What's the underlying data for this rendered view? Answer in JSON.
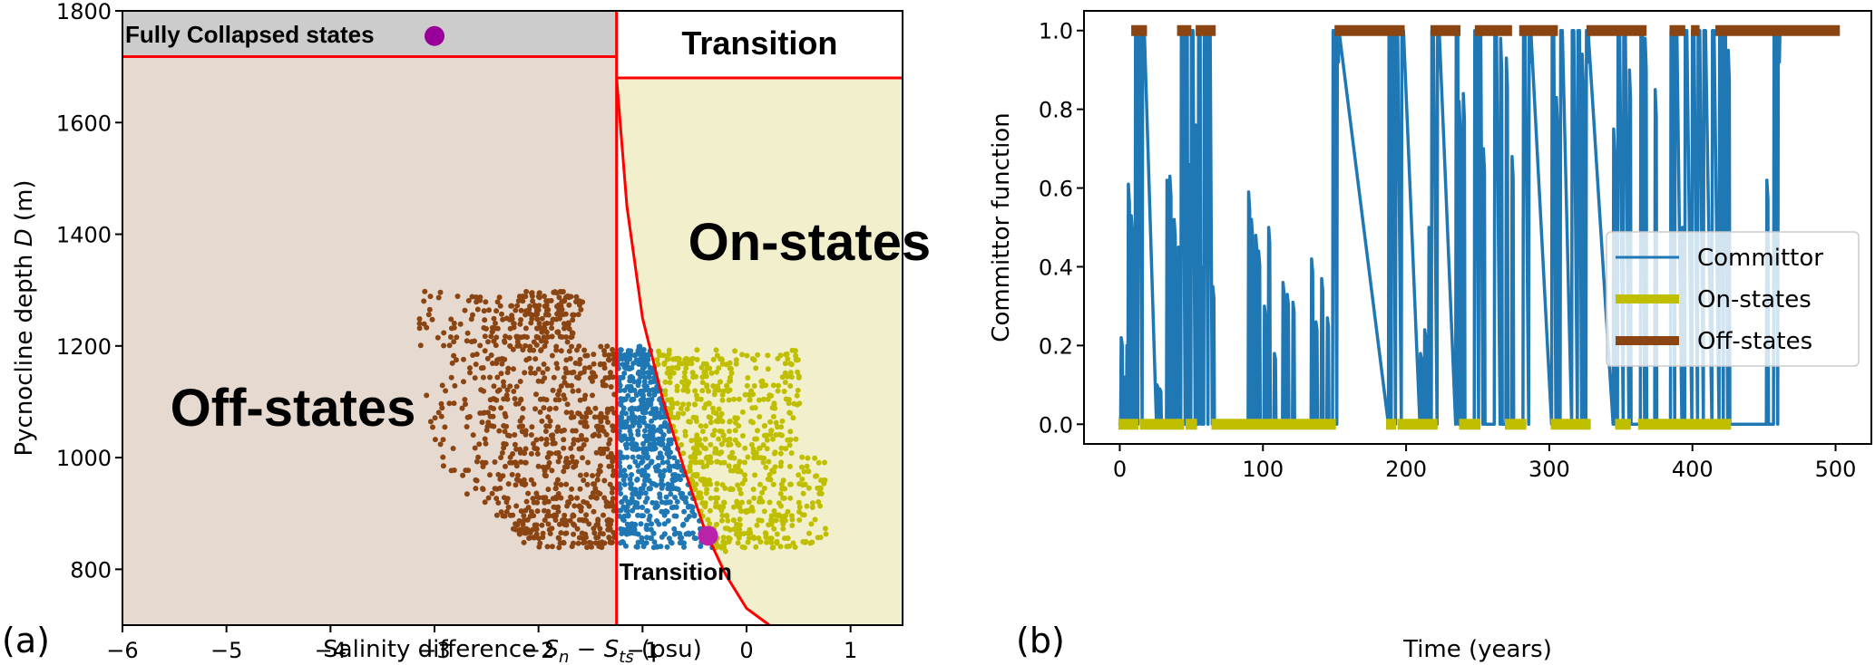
{
  "chart_data": [
    {
      "panel": "(a)",
      "type": "scatter",
      "title": "",
      "xlabel_parts": [
        "Salinity difference ",
        "S",
        "n",
        " − ",
        "S",
        "ts",
        " (psu)"
      ],
      "ylabel_parts": [
        "Pycnocline depth ",
        "D",
        " (m)"
      ],
      "xlim": [
        -6,
        1.5
      ],
      "ylim": [
        700,
        1800
      ],
      "xticks": [
        -6,
        -5,
        -4,
        -3,
        -2,
        -1,
        0,
        1
      ],
      "xtick_labels": [
        "−6",
        "−5",
        "−4",
        "−3",
        "−2",
        "−1",
        "0",
        "1"
      ],
      "yticks": [
        800,
        1000,
        1200,
        1400,
        1600,
        1800
      ],
      "ytick_labels": [
        "800",
        "1000",
        "1200",
        "1400",
        "1600",
        "1800"
      ],
      "grid": false,
      "regions": {
        "off_states": {
          "label": "Off-states",
          "color": "#e6dad0",
          "x_max": -1.25,
          "y_max": 1718
        },
        "fully_collapsed": {
          "label": "Fully Collapsed states",
          "color": "#cccccc",
          "y_min": 1718,
          "x_max": -1.25
        },
        "transition_top": {
          "label": "Transition",
          "color": "#ffffff",
          "y_min": 1680,
          "x_min": -1.25
        },
        "on_states": {
          "label": "On-states",
          "color": "#f2f0cc"
        },
        "transition_bottom": {
          "label": "Transition",
          "color": "#ffffff"
        }
      },
      "boundary_color": "#ff0000",
      "boundary_vertical_x": -1.25,
      "boundary_curve": [
        [
          -1.25,
          1680
        ],
        [
          -1.15,
          1450
        ],
        [
          -1.0,
          1250
        ],
        [
          -0.8,
          1100
        ],
        [
          -0.6,
          980
        ],
        [
          -0.4,
          870
        ],
        [
          -0.2,
          790
        ],
        [
          0.0,
          730
        ],
        [
          0.22,
          700
        ]
      ],
      "series": [
        {
          "name": "Off-states",
          "color": "#8b4513",
          "x_range": [
            -3.3,
            -1.25
          ],
          "y_range": [
            840,
            1300
          ]
        },
        {
          "name": "Transition",
          "color": "#1f77b4",
          "x_range": [
            -1.25,
            -0.3
          ],
          "y_range": [
            835,
            1200
          ]
        },
        {
          "name": "On-states",
          "color": "#bfbf00",
          "x_range": [
            -1.0,
            0.75
          ],
          "y_range": [
            835,
            1195
          ]
        }
      ],
      "markers": [
        {
          "name": "fully-collapsed-marker",
          "x": -3.0,
          "y": 1755,
          "color": "#990099"
        },
        {
          "name": "on-state-marker",
          "x": -0.37,
          "y": 860,
          "color": "#bb22aa"
        }
      ]
    },
    {
      "panel": "(b)",
      "type": "line",
      "title": "",
      "xlabel": "Time (years)",
      "ylabel": "Committor function",
      "xlim": [
        -25,
        525
      ],
      "ylim": [
        -0.05,
        1.05
      ],
      "xticks": [
        0,
        100,
        200,
        300,
        400,
        500
      ],
      "xtick_labels": [
        "0",
        "100",
        "200",
        "300",
        "400",
        "500"
      ],
      "yticks": [
        0.0,
        0.2,
        0.4,
        0.6,
        0.8,
        1.0
      ],
      "ytick_labels": [
        "0.0",
        "0.2",
        "0.4",
        "0.6",
        "0.8",
        "1.0"
      ],
      "grid": false,
      "legend": {
        "placement": "center-right",
        "entries": [
          {
            "label": "Committor",
            "color": "#1f77b4"
          },
          {
            "label": "On-states",
            "color": "#bfbf00"
          },
          {
            "label": "Off-states",
            "color": "#8b4513"
          }
        ]
      },
      "off_state_intervals": [
        [
          8,
          19
        ],
        [
          40,
          50
        ],
        [
          53,
          67
        ],
        [
          150,
          199
        ],
        [
          217,
          238
        ],
        [
          248,
          274
        ],
        [
          279,
          306
        ],
        [
          326,
          368
        ],
        [
          384,
          395
        ],
        [
          399,
          405
        ],
        [
          416,
          503
        ]
      ],
      "on_state_intervals": [
        [
          -1,
          13
        ],
        [
          14,
          45
        ],
        [
          46,
          54
        ],
        [
          64,
          151
        ],
        [
          186,
          193
        ],
        [
          194,
          222
        ],
        [
          237,
          252
        ],
        [
          269,
          284
        ],
        [
          301,
          329
        ],
        [
          346,
          357
        ],
        [
          362,
          427
        ]
      ],
      "committor_excursions": [
        {
          "t": 1,
          "peak": 0.22
        },
        {
          "t": 3,
          "peak": 0.12
        },
        {
          "t": 5,
          "peak": 0.2
        },
        {
          "t": 6,
          "peak": 0.61
        },
        {
          "t": 8,
          "peak": 0.53
        },
        {
          "t": 10,
          "peak": 0.3
        },
        {
          "t": 11,
          "peak": 1.0
        },
        {
          "t": 13,
          "peak": 1.0
        },
        {
          "t": 16,
          "peak": 1.0
        },
        {
          "t": 26,
          "peak": 0.1
        },
        {
          "t": 28,
          "peak": 0.09
        },
        {
          "t": 33,
          "peak": 0.62
        },
        {
          "t": 35,
          "peak": 0.63
        },
        {
          "t": 38,
          "peak": 0.52
        },
        {
          "t": 41,
          "peak": 0.45
        },
        {
          "t": 43,
          "peak": 1.0
        },
        {
          "t": 46,
          "peak": 1.0
        },
        {
          "t": 48,
          "peak": 0.66
        },
        {
          "t": 50,
          "peak": 1.0
        },
        {
          "t": 53,
          "peak": 0.76
        },
        {
          "t": 55,
          "peak": 1.0
        },
        {
          "t": 57,
          "peak": 0.4
        },
        {
          "t": 59,
          "peak": 1.0
        },
        {
          "t": 62,
          "peak": 1.0
        },
        {
          "t": 65,
          "peak": 0.35
        },
        {
          "t": 90,
          "peak": 0.59
        },
        {
          "t": 92,
          "peak": 0.52
        },
        {
          "t": 95,
          "peak": 0.48
        },
        {
          "t": 97,
          "peak": 0.44
        },
        {
          "t": 101,
          "peak": 0.3
        },
        {
          "t": 104,
          "peak": 0.5
        },
        {
          "t": 108,
          "peak": 0.18
        },
        {
          "t": 114,
          "peak": 0.36
        },
        {
          "t": 117,
          "peak": 0.33
        },
        {
          "t": 121,
          "peak": 0.31
        },
        {
          "t": 134,
          "peak": 0.42
        },
        {
          "t": 137,
          "peak": 0.26
        },
        {
          "t": 141,
          "peak": 0.37
        },
        {
          "t": 145,
          "peak": 0.27
        },
        {
          "t": 149,
          "peak": 1.0
        },
        {
          "t": 152,
          "peak": 1.0
        },
        {
          "t": 188,
          "peak": 1.0
        },
        {
          "t": 190,
          "peak": 1.0
        },
        {
          "t": 193,
          "peak": 1.0
        },
        {
          "t": 197,
          "peak": 1.0
        },
        {
          "t": 210,
          "peak": 0.18
        },
        {
          "t": 213,
          "peak": 0.24
        },
        {
          "t": 216,
          "peak": 0.5
        },
        {
          "t": 218,
          "peak": 1.0
        },
        {
          "t": 222,
          "peak": 1.0
        },
        {
          "t": 235,
          "peak": 1.0
        },
        {
          "t": 237,
          "peak": 0.82
        },
        {
          "t": 240,
          "peak": 0.84
        },
        {
          "t": 248,
          "peak": 1.0
        },
        {
          "t": 251,
          "peak": 1.0
        },
        {
          "t": 254,
          "peak": 0.7
        },
        {
          "t": 262,
          "peak": 1.0
        },
        {
          "t": 266,
          "peak": 0.98
        },
        {
          "t": 270,
          "peak": 0.93
        },
        {
          "t": 274,
          "peak": 0.68
        },
        {
          "t": 282,
          "peak": 1.0
        },
        {
          "t": 286,
          "peak": 1.0
        },
        {
          "t": 302,
          "peak": 1.0
        },
        {
          "t": 305,
          "peak": 0.83
        },
        {
          "t": 308,
          "peak": 1.0
        },
        {
          "t": 316,
          "peak": 1.0
        },
        {
          "t": 320,
          "peak": 1.0
        },
        {
          "t": 323,
          "peak": 0.94
        },
        {
          "t": 326,
          "peak": 1.0
        },
        {
          "t": 345,
          "peak": 0.75
        },
        {
          "t": 348,
          "peak": 1.0
        },
        {
          "t": 352,
          "peak": 1.0
        },
        {
          "t": 356,
          "peak": 0.9
        },
        {
          "t": 364,
          "peak": 1.0
        },
        {
          "t": 367,
          "peak": 0.98
        },
        {
          "t": 374,
          "peak": 0.85
        },
        {
          "t": 385,
          "peak": 1.0
        },
        {
          "t": 388,
          "peak": 1.0
        },
        {
          "t": 393,
          "peak": 0.5
        },
        {
          "t": 395,
          "peak": 1.0
        },
        {
          "t": 400,
          "peak": 1.0
        },
        {
          "t": 404,
          "peak": 1.0
        },
        {
          "t": 408,
          "peak": 1.0
        },
        {
          "t": 414,
          "peak": 1.0
        },
        {
          "t": 419,
          "peak": 1.0
        },
        {
          "t": 422,
          "peak": 1.0
        },
        {
          "t": 425,
          "peak": 0.95
        },
        {
          "t": 452,
          "peak": 0.62
        },
        {
          "t": 457,
          "peak": 1.0
        },
        {
          "t": 460,
          "peak": 1.0
        }
      ]
    }
  ]
}
